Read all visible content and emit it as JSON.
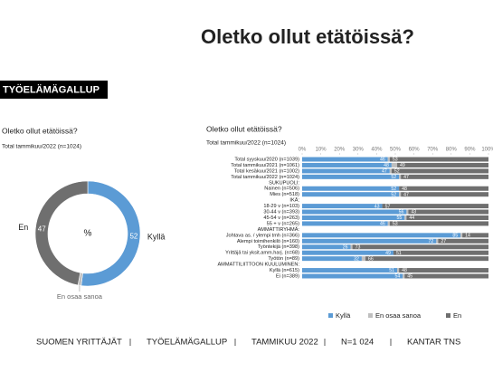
{
  "header": {
    "title": "Oletko ollut etätöissä?",
    "brand": "TYÖELÄMÄGALLUP"
  },
  "footer": [
    "SUOMEN YRITTÄJÄT",
    "TYÖELÄMÄGALLUP",
    "TAMMIKUU 2022",
    "N=1 024",
    "KANTAR TNS"
  ],
  "chart_data": [
    {
      "type": "donut",
      "title": "Oletko ollut etätöissä?",
      "subtitle": "Total tammikuu/2022 (n=1024)",
      "center_label": "%",
      "categories": [
        "Kyllä",
        "En osaa sanoa",
        "En"
      ],
      "values": [
        52,
        1,
        47
      ],
      "colors": [
        "#5b9bd5",
        "#bfbfbf",
        "#6f6f6f"
      ]
    },
    {
      "type": "stacked-hbar",
      "title": "Oletko ollut etätöissä?",
      "subtitle": "Total tammikuu/2022 (n=1024)",
      "categories": [
        "Total syyskuu/2020 (n=1039)",
        "Total tammikuu/2021 (n=1061)",
        "Total kesäkuu/2021 (n=1002)",
        "Total tammikuu/2022 (n=1024)",
        "SUKUPUOLI:",
        "Nainen (n=506)",
        "Mies (n=518)",
        "IKÄ:",
        "18-29 v (n=103)",
        "30-44 v (n=393)",
        "45-54 v (n=263)",
        "55 + v (n=265)",
        "AMMATTIRYHMÄ:",
        "Johtava as. / ylempi tmh (n=366)",
        "Alempi toimihenkilö (n=160)",
        "Työntekijä (n=398)",
        "Yrittäjä tai yksit.amm.harj. (n=68)",
        "Työtön (n=89)",
        "AMMATTILIITTOON KUULUMINEN:",
        "Kyllä (n=615)",
        "Ei (n=389)"
      ],
      "series": [
        {
          "name": "Kyllä",
          "color": "#5b9bd5",
          "values": [
            46,
            48,
            47,
            52,
            null,
            52,
            52,
            null,
            43,
            56,
            55,
            46,
            null,
            85,
            72,
            26,
            49,
            32,
            null,
            51,
            54
          ]
        },
        {
          "name": "En osaa sanoa",
          "color": "#bfbfbf",
          "values": [
            1,
            3,
            1,
            1,
            null,
            0,
            1,
            null,
            0,
            1,
            1,
            1,
            null,
            1,
            1,
            1,
            0,
            2,
            null,
            1,
            1
          ]
        },
        {
          "name": "En",
          "color": "#6f6f6f",
          "values": [
            53,
            49,
            52,
            47,
            null,
            48,
            47,
            null,
            57,
            43,
            44,
            53,
            null,
            14,
            27,
            73,
            51,
            66,
            null,
            48,
            45
          ]
        }
      ],
      "xlim": [
        0,
        100
      ],
      "xticks": [
        {
          "value": 0,
          "label": "0%"
        },
        {
          "value": 10,
          "label": "10%"
        },
        {
          "value": 20,
          "label": "20%"
        },
        {
          "value": 30,
          "label": "30%"
        },
        {
          "value": 40,
          "label": "40%"
        },
        {
          "value": 50,
          "label": "50%"
        },
        {
          "value": 60,
          "label": "60%"
        },
        {
          "value": 70,
          "label": "70%"
        },
        {
          "value": 80,
          "label": "80%"
        },
        {
          "value": 90,
          "label": "90%"
        },
        {
          "value": 100,
          "label": "100%"
        }
      ],
      "legend": "bottom"
    }
  ]
}
